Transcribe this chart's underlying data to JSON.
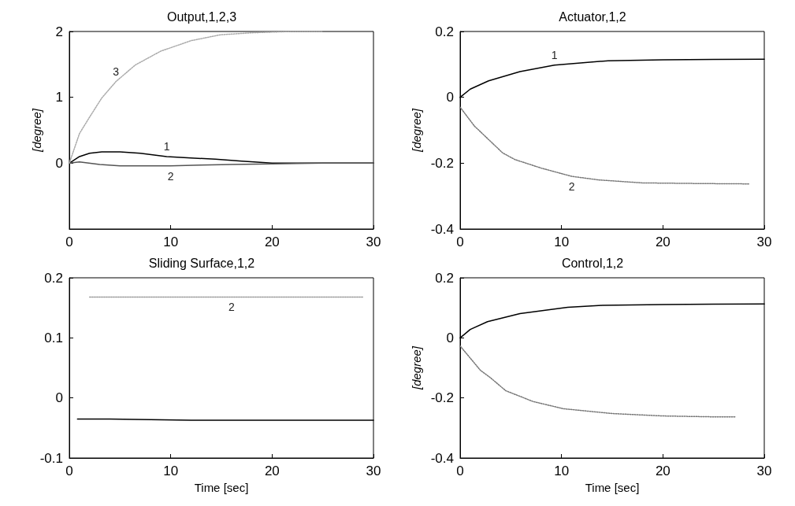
{
  "chart_data": [
    {
      "type": "line",
      "title": "Output,1,2,3",
      "ylabel": "[degree]",
      "xlim": [
        0,
        30
      ],
      "xticks": [
        0,
        10,
        20,
        30
      ],
      "ylim": [
        -1,
        2
      ],
      "yticks": [
        0,
        1,
        2
      ],
      "grid": false,
      "marker": "none",
      "series": [
        {
          "name": "1",
          "color": "#000000",
          "line_style": "solid",
          "x": [
            0,
            1,
            2,
            3.2,
            5,
            7,
            9.6,
            12,
            14.4,
            17,
            20,
            25,
            30
          ],
          "values": [
            0,
            0.1,
            0.15,
            0.17,
            0.17,
            0.15,
            0.1,
            0.08,
            0.06,
            0.03,
            0,
            0,
            0
          ]
        },
        {
          "name": "2",
          "color": "#555555",
          "line_style": "solid",
          "x": [
            0,
            1,
            3,
            5,
            8,
            10,
            13,
            16,
            20,
            25,
            30
          ],
          "values": [
            0,
            0.02,
            -0.02,
            -0.04,
            -0.04,
            -0.04,
            -0.03,
            -0.02,
            -0.01,
            0,
            0
          ]
        },
        {
          "name": "3",
          "color": "#aaaaaa",
          "line_style": "dotted",
          "x": [
            0,
            1,
            2,
            3.2,
            4.6,
            6.5,
            9,
            12,
            14.9,
            18,
            22,
            25
          ],
          "values": [
            0,
            0.45,
            0.7,
            0.99,
            1.24,
            1.49,
            1.7,
            1.86,
            1.95,
            1.98,
            2,
            2
          ]
        }
      ]
    },
    {
      "type": "line",
      "title": "Actuator,1,2",
      "ylabel": "[degree]",
      "xlim": [
        0,
        30
      ],
      "xticks": [
        0,
        10,
        20,
        30
      ],
      "ylim": [
        -0.4,
        0.2
      ],
      "yticks": [
        -0.4,
        -0.2,
        0,
        0.2
      ],
      "grid": false,
      "marker": "none",
      "series": [
        {
          "name": "1",
          "color": "#000000",
          "line_style": "solid",
          "x": [
            0,
            1,
            2.8,
            5.9,
            9.3,
            14.6,
            20,
            25,
            30
          ],
          "values": [
            0,
            0.025,
            0.05,
            0.078,
            0.098,
            0.111,
            0.114,
            0.115,
            0.116
          ]
        },
        {
          "name": "2",
          "color": "#777777",
          "line_style": "dotted",
          "x": [
            0,
            1.4,
            4.2,
            5.4,
            8,
            11,
            13.7,
            18,
            24,
            28.5
          ],
          "values": [
            -0.03,
            -0.087,
            -0.169,
            -0.189,
            -0.215,
            -0.24,
            -0.251,
            -0.26,
            -0.262,
            -0.263
          ]
        }
      ]
    },
    {
      "type": "line",
      "title": "Sliding Surface,1,2",
      "xlabel": "Time [sec]",
      "xlim": [
        0,
        30
      ],
      "xticks": [
        0,
        10,
        20,
        30
      ],
      "ylim": [
        -0.1,
        0.2
      ],
      "yticks": [
        -0.1,
        0,
        0.1,
        0.2
      ],
      "grid": false,
      "marker": "none",
      "series": [
        {
          "color": "#000000",
          "line_style": "solid",
          "x": [
            0.8,
            4,
            8,
            12,
            20,
            30
          ],
          "values": [
            -0.035,
            -0.035,
            -0.036,
            -0.037,
            -0.037,
            -0.037
          ]
        },
        {
          "name": "2",
          "color": "#999999",
          "line_style": "dotted",
          "x": [
            2,
            10,
            16,
            20,
            29
          ],
          "values": [
            0.168,
            0.168,
            0.168,
            0.168,
            0.168
          ]
        }
      ]
    },
    {
      "type": "line",
      "title": "Control,1,2",
      "xlabel": "Time [sec]",
      "ylabel": "[degree]",
      "xlim": [
        0,
        30
      ],
      "xticks": [
        0,
        10,
        20,
        30
      ],
      "ylim": [
        -0.4,
        0.2
      ],
      "yticks": [
        -0.4,
        -0.2,
        0,
        0.2
      ],
      "grid": false,
      "marker": "none",
      "series": [
        {
          "color": "#000000",
          "line_style": "solid",
          "x": [
            0,
            1,
            2.7,
            5.9,
            10.6,
            14,
            20,
            25,
            30
          ],
          "values": [
            0,
            0.028,
            0.054,
            0.081,
            0.102,
            0.108,
            0.111,
            0.112,
            0.113
          ]
        },
        {
          "color": "#777777",
          "line_style": "dotted",
          "x": [
            0,
            2,
            3,
            4.5,
            7.2,
            10.2,
            15,
            20,
            25,
            27.2
          ],
          "values": [
            -0.027,
            -0.108,
            -0.133,
            -0.176,
            -0.212,
            -0.236,
            -0.252,
            -0.26,
            -0.263,
            -0.263
          ]
        }
      ]
    }
  ]
}
